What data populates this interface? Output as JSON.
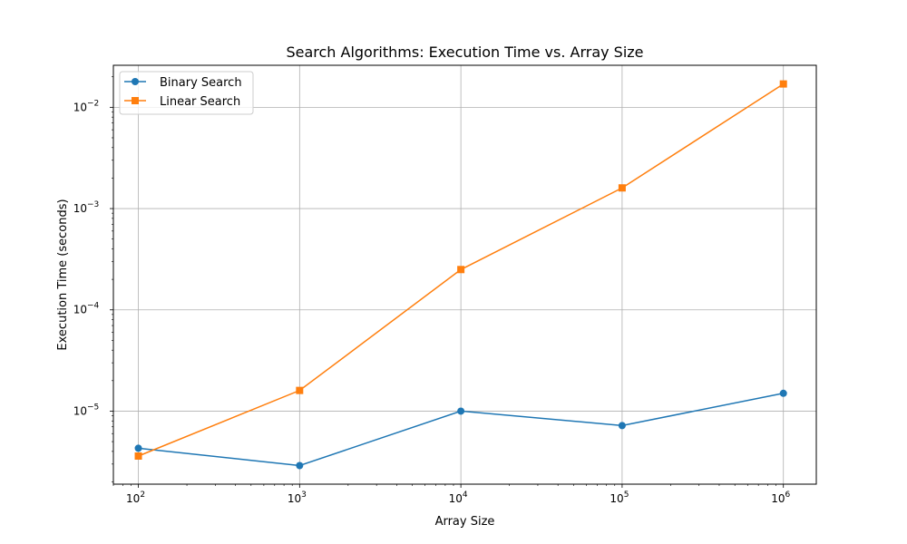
{
  "chart_data": {
    "type": "line",
    "title": "Search Algorithms: Execution Time vs. Array Size",
    "xlabel": "Array Size",
    "ylabel": "Execution Time (seconds)",
    "x_scale": "log",
    "y_scale": "log",
    "xlim": [
      70,
      1600000
    ],
    "ylim": [
      1.9e-06,
      0.026
    ],
    "grid": true,
    "legend_position": "top-left",
    "x": [
      100,
      1000,
      10000,
      100000,
      1000000
    ],
    "x_ticks": [
      {
        "value": 100,
        "base": "10",
        "exp": "2"
      },
      {
        "value": 1000,
        "base": "10",
        "exp": "3"
      },
      {
        "value": 10000,
        "base": "10",
        "exp": "4"
      },
      {
        "value": 100000,
        "base": "10",
        "exp": "5"
      },
      {
        "value": 1000000,
        "base": "10",
        "exp": "6"
      }
    ],
    "y_ticks": [
      {
        "value": 1e-05,
        "base": "10",
        "exp": "−5"
      },
      {
        "value": 0.0001,
        "base": "10",
        "exp": "−4"
      },
      {
        "value": 0.001,
        "base": "10",
        "exp": "−3"
      },
      {
        "value": 0.01,
        "base": "10",
        "exp": "−2"
      }
    ],
    "series": [
      {
        "name": "Binary Search",
        "color": "#1f77b4",
        "marker": "circle",
        "values": [
          4.3e-06,
          2.9e-06,
          1e-05,
          7.2e-06,
          1.5e-05
        ]
      },
      {
        "name": "Linear Search",
        "color": "#ff7f0e",
        "marker": "square",
        "values": [
          3.6e-06,
          1.6e-05,
          0.00025,
          0.0016,
          0.017
        ]
      }
    ]
  }
}
